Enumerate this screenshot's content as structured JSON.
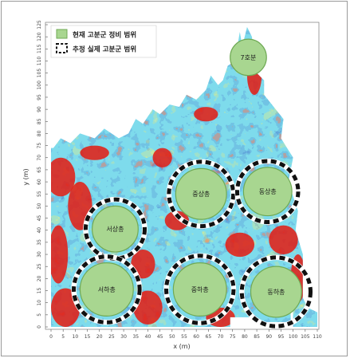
{
  "legend": {
    "current_label": "현재 고분군 정비 범위",
    "estimated_label": "추정 실제 고분군 범위"
  },
  "axes": {
    "x_label": "x (m)",
    "y_label": "y (m)",
    "x_ticks": [
      "0",
      "5",
      "10",
      "15",
      "20",
      "25",
      "30",
      "35",
      "40",
      "45",
      "50",
      "55",
      "60",
      "65",
      "70",
      "75",
      "80",
      "85",
      "90",
      "95",
      "100",
      "105",
      "110"
    ],
    "y_ticks": [
      "0",
      "5",
      "10",
      "15",
      "20",
      "25",
      "30",
      "35",
      "40",
      "45",
      "50",
      "55",
      "60",
      "65",
      "70",
      "75",
      "80",
      "85",
      "90",
      "95",
      "100",
      "105",
      "110",
      "115",
      "120",
      "125"
    ]
  },
  "tombs": [
    {
      "id": "seosang",
      "label": "서상총",
      "x": 26.5,
      "y": 40.5,
      "r": 9.5,
      "er": 12.2
    },
    {
      "id": "seoha",
      "label": "서하총",
      "x": 23.0,
      "y": 15.5,
      "r": 11.0,
      "er": 13.6
    },
    {
      "id": "jungsang",
      "label": "중상총",
      "x": 62.0,
      "y": 55.0,
      "r": 10.5,
      "er": 13.3
    },
    {
      "id": "dongsang",
      "label": "동상총",
      "x": 89.5,
      "y": 56.0,
      "r": 10.0,
      "er": 12.6
    },
    {
      "id": "jungha",
      "label": "중하총",
      "x": 61.5,
      "y": 15.5,
      "r": 11.0,
      "er": 13.9
    },
    {
      "id": "dongha",
      "label": "동하총",
      "x": 93.0,
      "y": 14.5,
      "r": 10.5,
      "er": 14.2
    },
    {
      "id": "chilho",
      "label": "7호분",
      "x": 81.5,
      "y": 111.5,
      "r": 7.5,
      "er": null
    }
  ],
  "colors": {
    "mound_fill": "#a8d690",
    "mound_stroke": "#6faa55",
    "map_red": "#e41a10",
    "map_blue": "#1f64b5",
    "map_cyan": "#35b4d6",
    "map_green": "#8ccc62",
    "map_yellow": "#f2e43c"
  }
}
